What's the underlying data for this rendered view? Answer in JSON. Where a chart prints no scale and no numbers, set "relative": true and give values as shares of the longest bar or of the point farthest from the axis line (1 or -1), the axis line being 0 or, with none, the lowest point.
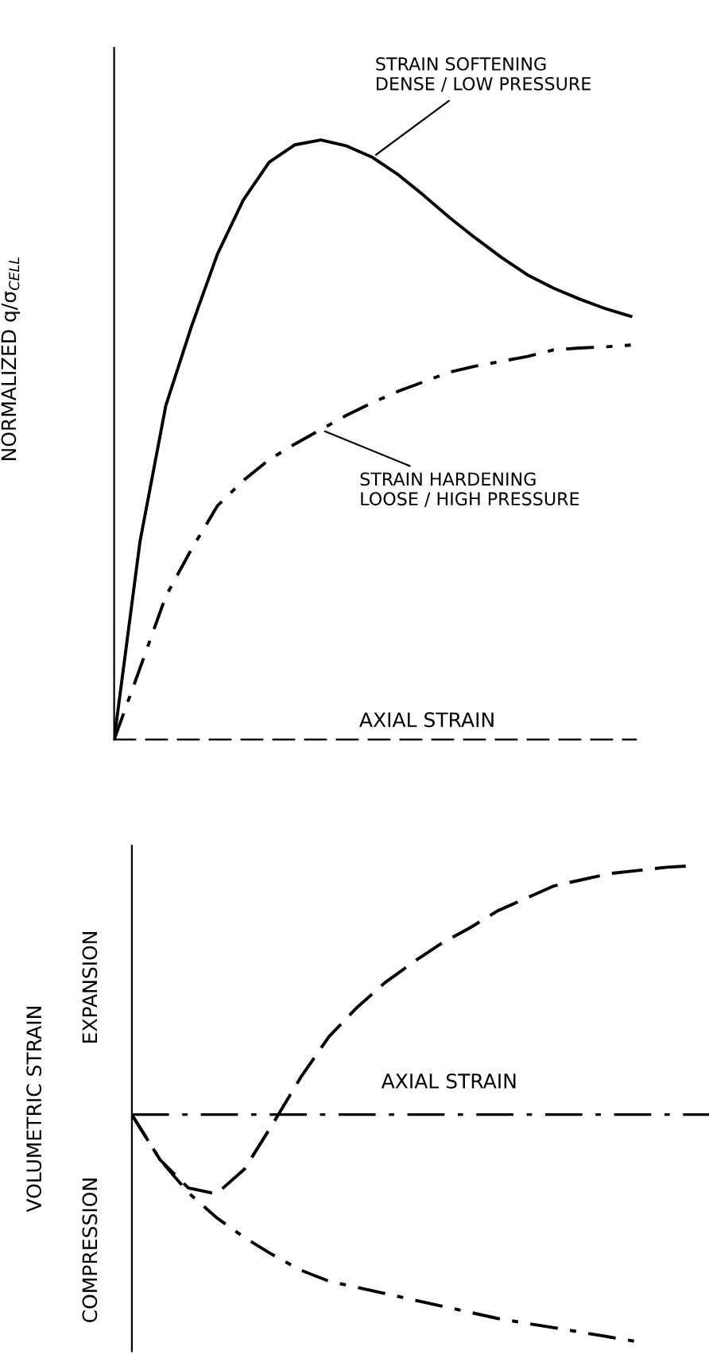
{
  "chart_data": [
    {
      "type": "line",
      "relative": true,
      "xlabel": "AXIAL STRAIN",
      "ylabel": "NORMALIZED q/σ$_{CELL}$",
      "categories": [
        null,
        null,
        null,
        null,
        null,
        null,
        null,
        null,
        null,
        null,
        null,
        null,
        null,
        null,
        null,
        null,
        null,
        null,
        null,
        null,
        null
      ],
      "series": [
        {
          "color": "#000000",
          "line_style": "solid",
          "values": [
            0,
            0.33,
            0.557,
            0.69,
            0.81,
            0.9,
            0.963,
            0.992,
            1,
            0.99,
            0.971,
            0.942,
            0.907,
            0.87,
            0.836,
            0.804,
            0.775,
            0.753,
            0.735,
            0.719,
            0.706
          ]
        },
        {
          "color": "#000000",
          "line_style": "dashed",
          "values": [
            0,
            0.119,
            0.239,
            0.318,
            0.39,
            0.432,
            0.467,
            0.493,
            0.517,
            0.541,
            0.562,
            0.581,
            0.597,
            0.613,
            0.623,
            0.631,
            0.639,
            0.65,
            0.653,
            0.655,
            0.658
          ]
        }
      ],
      "annotations": [
        "STRAIN SOFTENING\nDENSE / LOW PRESSURE",
        "STRAIN HARDENING\nLOOSE / HIGH PRESSURE"
      ]
    },
    {
      "type": "line",
      "relative": true,
      "xlabel": "AXIAL STRAIN",
      "ylabel": "VOLUMETRIC STRAIN",
      "ref_lines": [
        {
          "axis": "y",
          "value": 0,
          "line_style": "dashed"
        }
      ],
      "categories": [
        null,
        null,
        null,
        null,
        null,
        null,
        null,
        null,
        null,
        null,
        null,
        null,
        null,
        null,
        null,
        null,
        null,
        null,
        null,
        null,
        null
      ],
      "series": [
        {
          "color": "#000000",
          "line_style": "dashed",
          "values": [
            0,
            -0.181,
            -0.294,
            -0.319,
            -0.219,
            -0.038,
            0.15,
            0.313,
            0.431,
            0.531,
            0.613,
            0.688,
            0.75,
            0.819,
            0.869,
            0.919,
            0.944,
            0.969,
            0.981,
            0.994,
            1.0
          ]
        },
        {
          "color": "#000000",
          "line_style": "dashed",
          "values": [
            0,
            -0.181,
            -0.313,
            -0.413,
            -0.494,
            -0.563,
            -0.625,
            -0.669,
            -0.694,
            -0.719,
            -0.744,
            -0.769,
            -0.794,
            -0.819,
            -0.838,
            -0.856,
            -0.875,
            -0.894,
            -0.913,
            null,
            null
          ]
        }
      ],
      "annotations": [
        "EXPANSION",
        "COMPRESSION"
      ]
    }
  ]
}
